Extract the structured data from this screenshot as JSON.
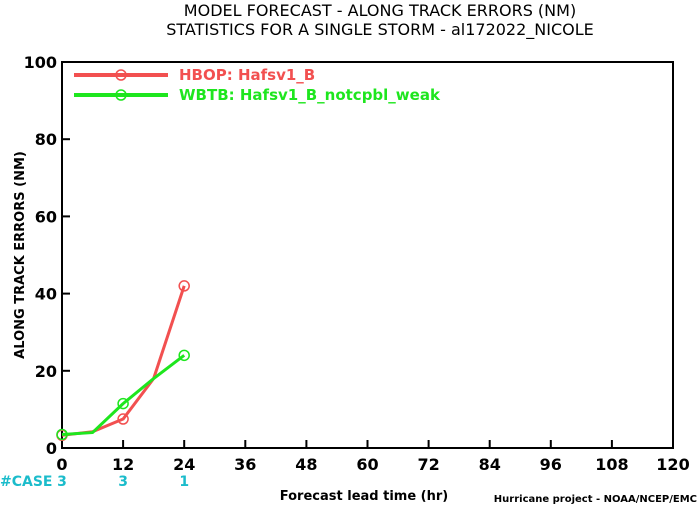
{
  "chart_data": {
    "type": "line",
    "title_lines": [
      "MODEL FORECAST - ALONG TRACK ERRORS (NM)",
      "STATISTICS FOR A SINGLE STORM - al172022_NICOLE"
    ],
    "xlabel": "Forecast lead time (hr)",
    "ylabel": "ALONG TRACK ERRORS (NM)",
    "xlim": [
      0,
      120
    ],
    "ylim": [
      0,
      100
    ],
    "xticks": [
      0,
      12,
      24,
      36,
      48,
      60,
      72,
      84,
      96,
      108,
      120
    ],
    "yticks": [
      0,
      20,
      40,
      60,
      80,
      100
    ],
    "grid": false,
    "legend_position": "top-left",
    "series": [
      {
        "name": "HBOP: Hafsv1_B",
        "color": "#f25050",
        "x": [
          0,
          6,
          12,
          18,
          24
        ],
        "y": [
          3.3,
          4.2,
          7.5,
          18.0,
          42.0
        ]
      },
      {
        "name": "WBTB: Hafsv1_B_notcpbl_weak",
        "color": "#1ee61e",
        "x": [
          0,
          6,
          12,
          18,
          24
        ],
        "y": [
          3.5,
          4.0,
          11.5,
          18.0,
          24.0
        ]
      }
    ],
    "case_label": "#CASE",
    "case_counts": [
      {
        "x": 0,
        "n": "3"
      },
      {
        "x": 12,
        "n": "3"
      },
      {
        "x": 24,
        "n": "1"
      }
    ],
    "credit": "Hurricane project - NOAA/NCEP/EMC"
  }
}
